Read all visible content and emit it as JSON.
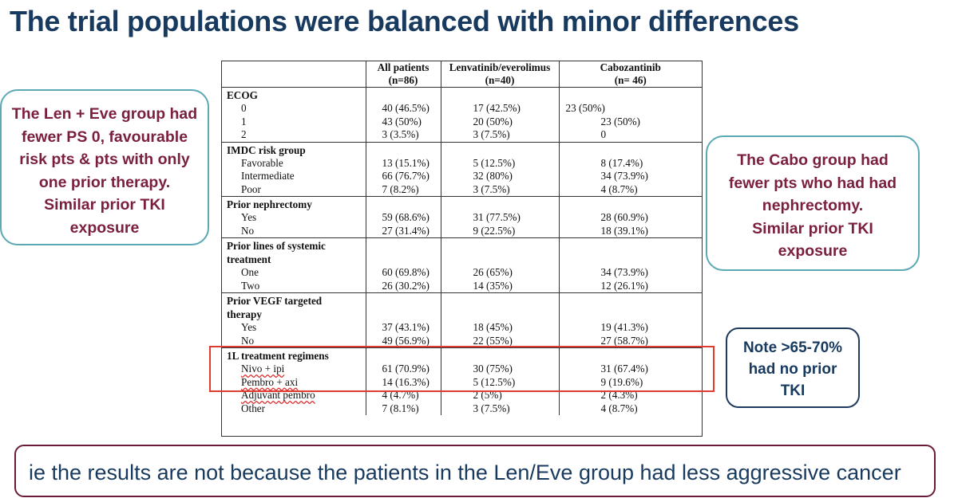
{
  "title": "The trial populations were balanced with minor differences",
  "callouts": {
    "left": [
      "The Len + Eve group had",
      "fewer PS 0, favourable",
      "risk pts & pts with only",
      "one prior therapy.",
      "Similar prior TKI",
      "exposure"
    ],
    "right": [
      "The Cabo group had",
      "fewer pts who had had",
      "nephrectomy.",
      "Similar prior TKI",
      "exposure"
    ],
    "note": [
      "Note >65-70%",
      "had no prior",
      "TKI"
    ]
  },
  "table": {
    "headers": [
      {
        "line1": "",
        "line2": ""
      },
      {
        "line1": "All patients",
        "line2": "(n=86)"
      },
      {
        "line1": "Lenvatinib/everolimus",
        "line2": "(n=40)"
      },
      {
        "line1": "Cabozantinib",
        "line2": "(n= 46)"
      }
    ],
    "sections": [
      {
        "label": "ECOG",
        "rows": [
          {
            "label": "0",
            "all": "40 (46.5%)",
            "len": "17 (42.5%)",
            "cabo": "23 (50%)"
          },
          {
            "label": "1",
            "all": "43 (50%)",
            "len": "20 (50%)",
            "cabo": "23 (50%)"
          },
          {
            "label": "2",
            "all": "3 (3.5%)",
            "len": "3 (7.5%)",
            "cabo": "0"
          }
        ]
      },
      {
        "label": "IMDC risk group",
        "rows": [
          {
            "label": "Favorable",
            "all": "13 (15.1%)",
            "len": "5 (12.5%)",
            "cabo": "8 (17.4%)"
          },
          {
            "label": "Intermediate",
            "all": "66 (76.7%)",
            "len": "32 (80%)",
            "cabo": "34 (73.9%)"
          },
          {
            "label": "Poor",
            "all": "7 (8.2%)",
            "len": "3 (7.5%)",
            "cabo": "4 (8.7%)"
          }
        ]
      },
      {
        "label": "Prior nephrectomy",
        "rows": [
          {
            "label": "Yes",
            "all": "59 (68.6%)",
            "len": "31 (77.5%)",
            "cabo": "28 (60.9%)"
          },
          {
            "label": "No",
            "all": "27 (31.4%)",
            "len": "9 (22.5%)",
            "cabo": "18 (39.1%)"
          }
        ]
      },
      {
        "label": "Prior lines of systemic",
        "label2": "treatment",
        "rows": [
          {
            "label": "One",
            "all": "60 (69.8%)",
            "len": "26 (65%)",
            "cabo": "34 (73.9%)"
          },
          {
            "label": "Two",
            "all": "26 (30.2%)",
            "len": "14 (35%)",
            "cabo": "12 (26.1%)"
          }
        ]
      },
      {
        "label": "Prior VEGF targeted",
        "label2": "therapy",
        "rows": [
          {
            "label": "Yes",
            "all": "37 (43.1%)",
            "len": "18 (45%)",
            "cabo": "19 (41.3%)"
          },
          {
            "label": "No",
            "all": "49 (56.9%)",
            "len": "22 (55%)",
            "cabo": "27 (58.7%)"
          }
        ]
      },
      {
        "label": "1L treatment regimens",
        "rows": [
          {
            "label": "Nivo + ipi",
            "all": "61 (70.9%)",
            "len": "30 (75%)",
            "cabo": "31 (67.4%)"
          },
          {
            "label": "Pembro + axi",
            "all": "14 (16.3%)",
            "len": "5 (12.5%)",
            "cabo": "9 (19.6%)"
          },
          {
            "label": "Adjuvant pembro",
            "all": "4 (4.7%)",
            "len": "2 (5%)",
            "cabo": "2 (4.3%)"
          },
          {
            "label": "Other",
            "all": "7 (8.1%)",
            "len": "3 (7.5%)",
            "cabo": "4 (8.7%)"
          }
        ]
      }
    ]
  },
  "banner": "ie the results are not because the patients in the Len/Eve group had less aggressive cancer"
}
